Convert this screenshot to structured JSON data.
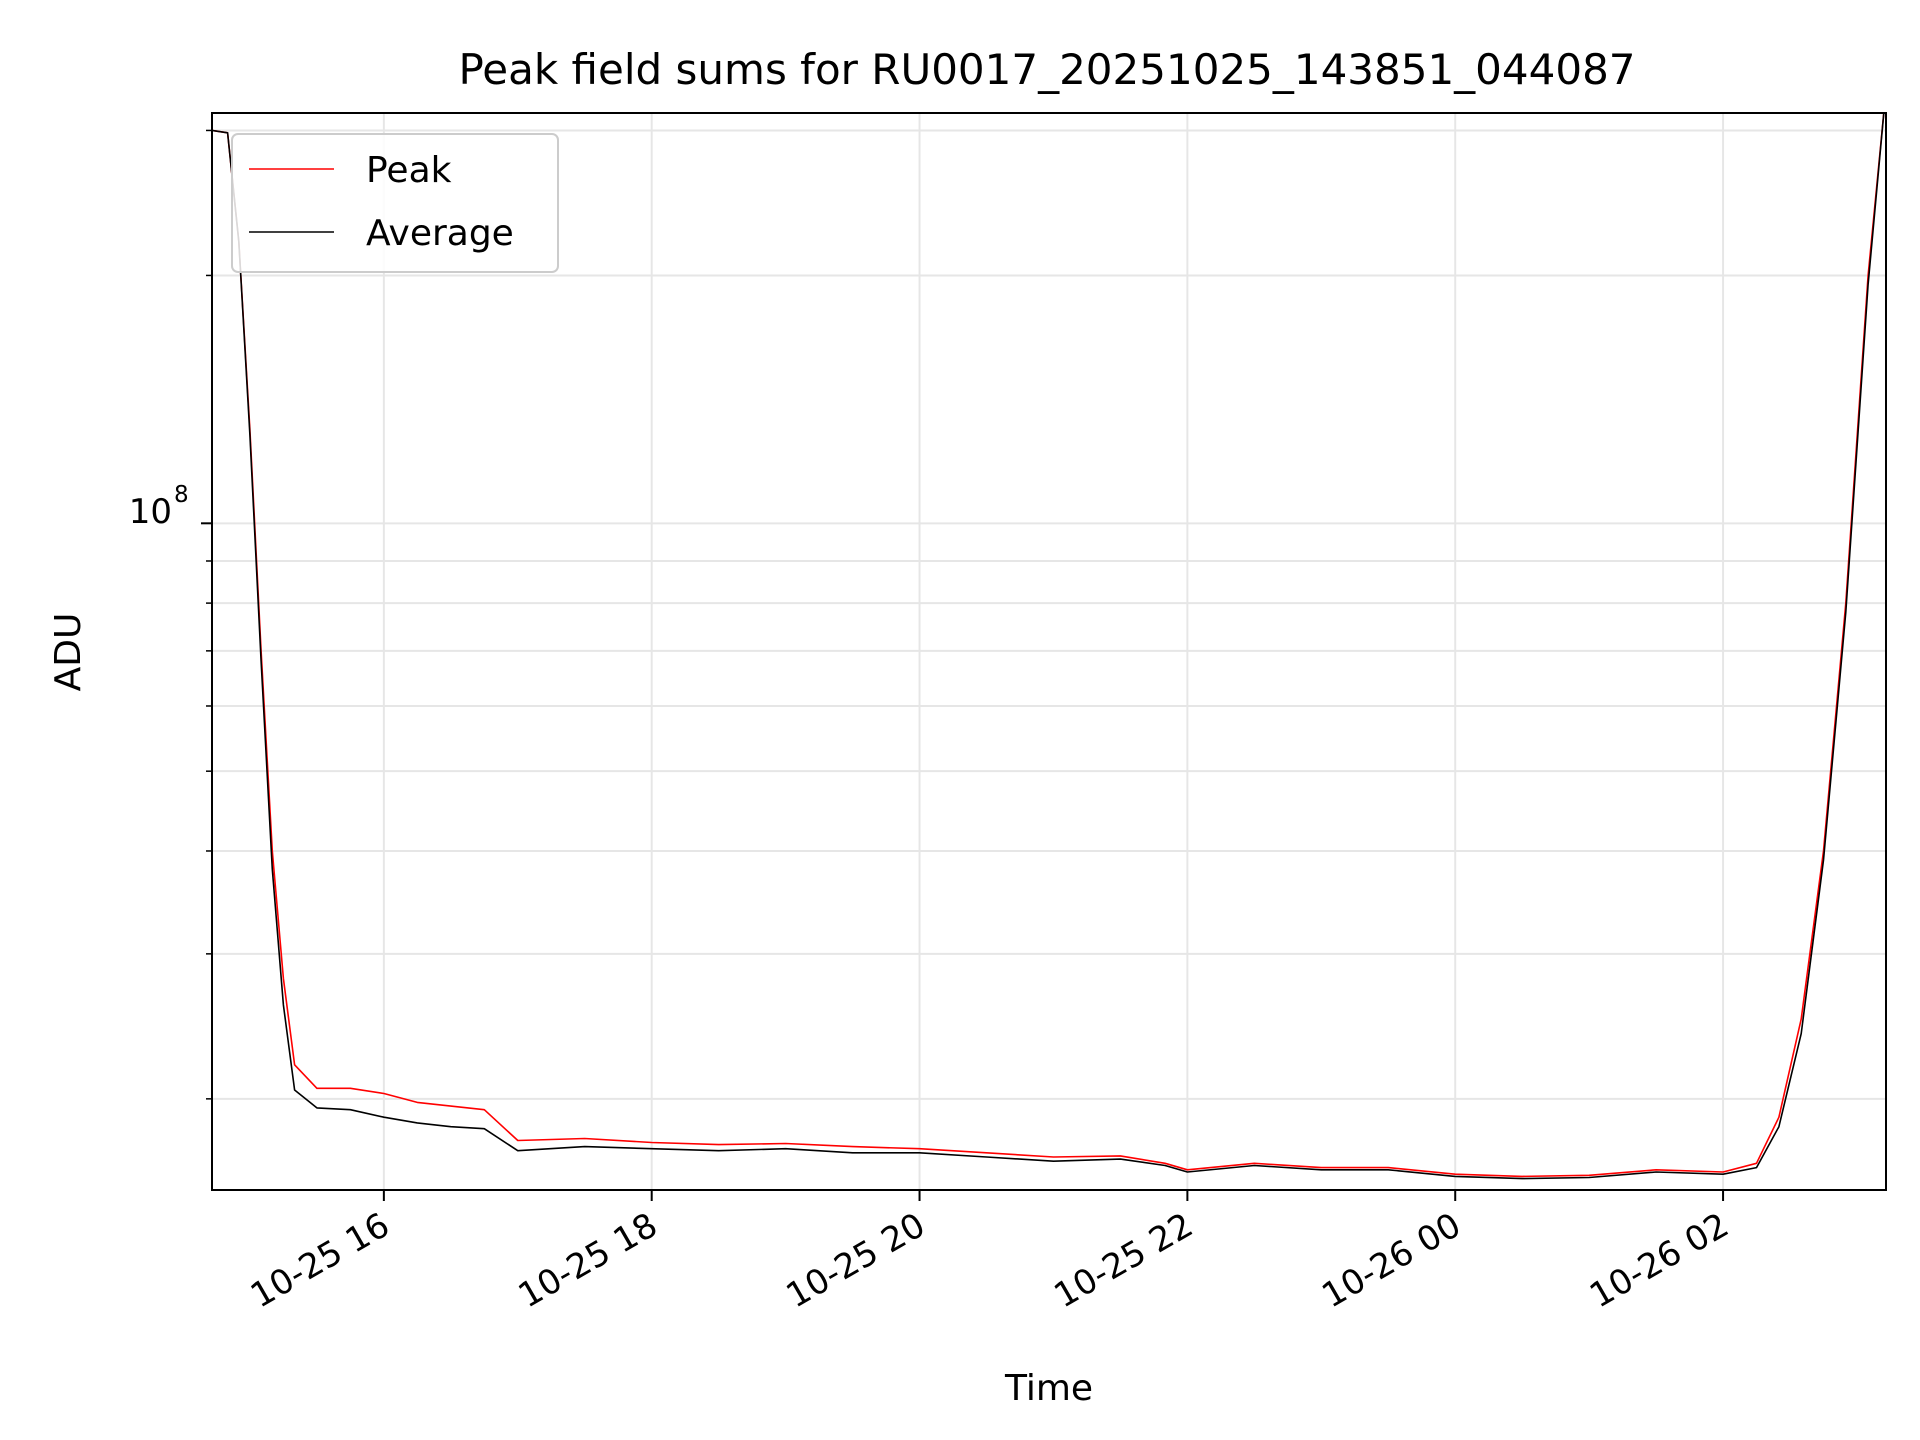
{
  "chart_data": {
    "type": "line",
    "title": "Peak field sums for RU0017_20251025_143851_044087",
    "xlabel": "Time",
    "ylabel": "ADU",
    "y_scale": "log",
    "ylim": [
      15500000,
      315000000
    ],
    "xlim": [
      "2025-10-25 14:43",
      "2025-10-26 03:13"
    ],
    "x_ticks": [
      {
        "at": "2025-10-25 16:00",
        "label": "10-25 16"
      },
      {
        "at": "2025-10-25 18:00",
        "label": "10-25 18"
      },
      {
        "at": "2025-10-25 20:00",
        "label": "10-25 20"
      },
      {
        "at": "2025-10-25 22:00",
        "label": "10-25 22"
      },
      {
        "at": "2025-10-26 00:00",
        "label": "10-26 00"
      },
      {
        "at": "2025-10-26 02:00",
        "label": "10-26 02"
      }
    ],
    "y_ticks": [
      {
        "value": 100000000,
        "label_base": "10",
        "label_exp": "8"
      }
    ],
    "y_minor_ticks": [
      20000000,
      30000000,
      40000000,
      50000000,
      60000000,
      70000000,
      80000000,
      90000000,
      200000000,
      300000000
    ],
    "grid": true,
    "legend_position": "top-left",
    "series": [
      {
        "name": "Peak",
        "color": "#ff0000",
        "points": [
          [
            "2025-10-25 14:43",
            300000000
          ],
          [
            "2025-10-25 14:50",
            298000000
          ],
          [
            "2025-10-25 14:55",
            220000000
          ],
          [
            "2025-10-25 15:00",
            130000000
          ],
          [
            "2025-10-25 15:05",
            70000000
          ],
          [
            "2025-10-25 15:10",
            40000000
          ],
          [
            "2025-10-25 15:15",
            28000000
          ],
          [
            "2025-10-25 15:20",
            22000000
          ],
          [
            "2025-10-25 15:30",
            20600000
          ],
          [
            "2025-10-25 15:45",
            20600000
          ],
          [
            "2025-10-25 16:00",
            20300000
          ],
          [
            "2025-10-25 16:15",
            19800000
          ],
          [
            "2025-10-25 16:30",
            19600000
          ],
          [
            "2025-10-25 16:45",
            19400000
          ],
          [
            "2025-10-25 17:00",
            17800000
          ],
          [
            "2025-10-25 17:30",
            17900000
          ],
          [
            "2025-10-25 18:00",
            17700000
          ],
          [
            "2025-10-25 18:30",
            17600000
          ],
          [
            "2025-10-25 19:00",
            17650000
          ],
          [
            "2025-10-25 19:30",
            17500000
          ],
          [
            "2025-10-25 20:00",
            17400000
          ],
          [
            "2025-10-25 20:30",
            17200000
          ],
          [
            "2025-10-25 21:00",
            17000000
          ],
          [
            "2025-10-25 21:30",
            17050000
          ],
          [
            "2025-10-25 21:50",
            16700000
          ],
          [
            "2025-10-25 22:00",
            16400000
          ],
          [
            "2025-10-25 22:30",
            16700000
          ],
          [
            "2025-10-25 23:00",
            16500000
          ],
          [
            "2025-10-25 23:30",
            16500000
          ],
          [
            "2025-10-26 00:00",
            16200000
          ],
          [
            "2025-10-26 00:30",
            16100000
          ],
          [
            "2025-10-26 01:00",
            16150000
          ],
          [
            "2025-10-26 01:30",
            16400000
          ],
          [
            "2025-10-26 02:00",
            16300000
          ],
          [
            "2025-10-26 02:15",
            16700000
          ],
          [
            "2025-10-26 02:25",
            19000000
          ],
          [
            "2025-10-26 02:35",
            25000000
          ],
          [
            "2025-10-26 02:45",
            40000000
          ],
          [
            "2025-10-26 02:55",
            80000000
          ],
          [
            "2025-10-26 03:05",
            200000000
          ],
          [
            "2025-10-26 03:12",
            315000000
          ]
        ]
      },
      {
        "name": "Average",
        "color": "#000000",
        "points": [
          [
            "2025-10-25 14:43",
            300000000
          ],
          [
            "2025-10-25 14:50",
            298000000
          ],
          [
            "2025-10-25 14:55",
            220000000
          ],
          [
            "2025-10-25 15:00",
            128000000
          ],
          [
            "2025-10-25 15:05",
            68000000
          ],
          [
            "2025-10-25 15:10",
            38000000
          ],
          [
            "2025-10-25 15:15",
            26000000
          ],
          [
            "2025-10-25 15:20",
            20500000
          ],
          [
            "2025-10-25 15:30",
            19500000
          ],
          [
            "2025-10-25 15:45",
            19400000
          ],
          [
            "2025-10-25 16:00",
            19000000
          ],
          [
            "2025-10-25 16:15",
            18700000
          ],
          [
            "2025-10-25 16:30",
            18500000
          ],
          [
            "2025-10-25 16:45",
            18400000
          ],
          [
            "2025-10-25 17:00",
            17300000
          ],
          [
            "2025-10-25 17:30",
            17500000
          ],
          [
            "2025-10-25 18:00",
            17400000
          ],
          [
            "2025-10-25 18:30",
            17300000
          ],
          [
            "2025-10-25 19:00",
            17400000
          ],
          [
            "2025-10-25 19:30",
            17200000
          ],
          [
            "2025-10-25 20:00",
            17200000
          ],
          [
            "2025-10-25 20:30",
            17000000
          ],
          [
            "2025-10-25 21:00",
            16800000
          ],
          [
            "2025-10-25 21:30",
            16900000
          ],
          [
            "2025-10-25 21:50",
            16600000
          ],
          [
            "2025-10-25 22:00",
            16300000
          ],
          [
            "2025-10-25 22:30",
            16600000
          ],
          [
            "2025-10-25 23:00",
            16400000
          ],
          [
            "2025-10-25 23:30",
            16400000
          ],
          [
            "2025-10-26 00:00",
            16100000
          ],
          [
            "2025-10-26 00:30",
            16000000
          ],
          [
            "2025-10-26 01:00",
            16050000
          ],
          [
            "2025-10-26 01:30",
            16300000
          ],
          [
            "2025-10-26 02:00",
            16200000
          ],
          [
            "2025-10-26 02:15",
            16500000
          ],
          [
            "2025-10-26 02:25",
            18500000
          ],
          [
            "2025-10-26 02:35",
            24000000
          ],
          [
            "2025-10-26 02:45",
            39000000
          ],
          [
            "2025-10-26 02:55",
            78000000
          ],
          [
            "2025-10-26 03:05",
            195000000
          ],
          [
            "2025-10-26 03:12",
            315000000
          ]
        ]
      }
    ]
  }
}
